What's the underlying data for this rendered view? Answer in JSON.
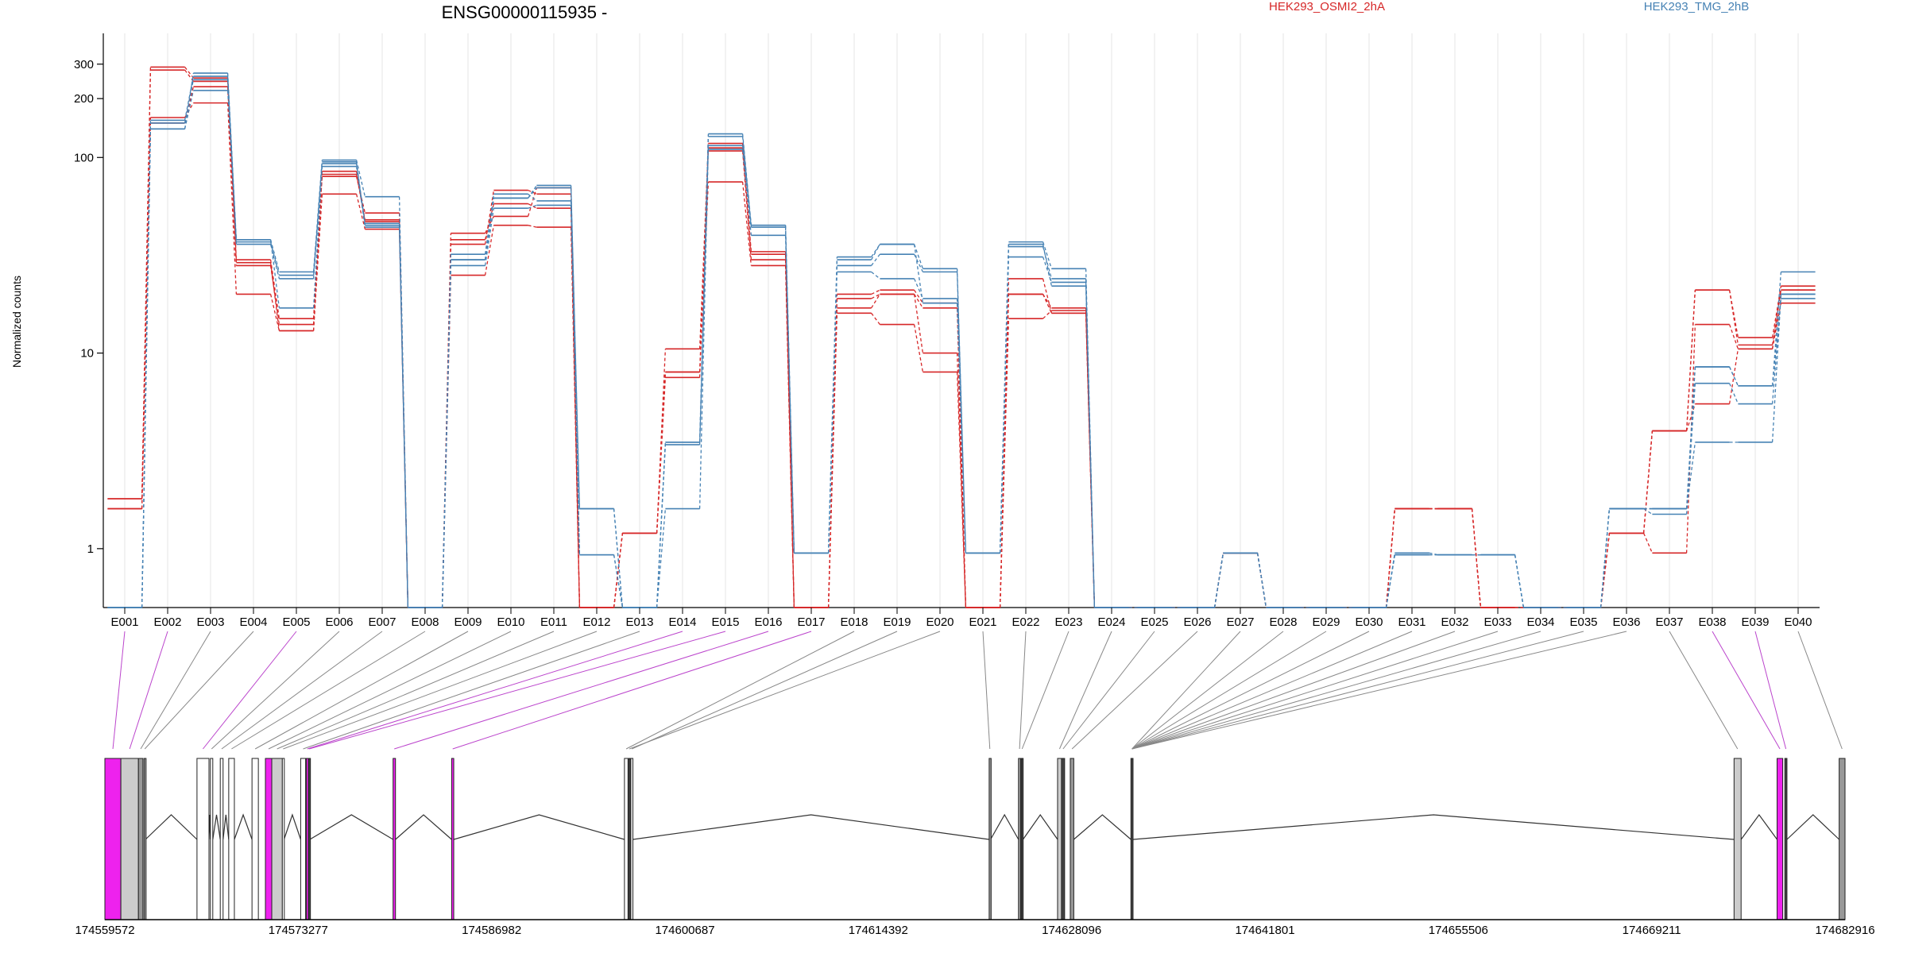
{
  "chart_data": {
    "type": "line",
    "title": "ENSG00000115935 -",
    "ylabel": "Normalized counts",
    "xlabel": "",
    "yscale": "log",
    "ylim": [
      0.5,
      400
    ],
    "yticks": [
      1,
      10,
      100,
      200,
      300
    ],
    "ytick_labels": [
      "1",
      "10",
      "100",
      "200",
      "300"
    ],
    "grid": "vertical",
    "legend": "top",
    "categories": [
      "E001",
      "E002",
      "E003",
      "E004",
      "E005",
      "E006",
      "E007",
      "E008",
      "E009",
      "E010",
      "E011",
      "E012",
      "E013",
      "E014",
      "E015",
      "E016",
      "E017",
      "E018",
      "E019",
      "E020",
      "E021",
      "E022",
      "E023",
      "E024",
      "E025",
      "E026",
      "E027",
      "E028",
      "E029",
      "E030",
      "E031",
      "E032",
      "E033",
      "E034",
      "E035",
      "E036",
      "E037",
      "E038",
      "E039",
      "E040"
    ],
    "groups": [
      {
        "name": "HEK293_OSMI2_2hA",
        "color": "#d62728"
      },
      {
        "name": "HEK293_TMG_2hB",
        "color": "#4682b4"
      }
    ],
    "series": [
      {
        "name": "",
        "group": 0,
        "values": [
          1.8,
          280,
          245,
          28,
          14,
          85,
          47,
          0.5,
          38,
          58,
          55,
          0.5,
          1.2,
          8,
          108,
          30,
          0.5,
          16,
          14,
          8,
          0.5,
          20,
          16,
          0.5,
          0.5,
          0.5,
          0.95,
          0.5,
          0.5,
          0.5,
          1.6,
          1.6,
          0.5,
          0.5,
          0.5,
          1.2,
          4,
          21,
          11,
          21
        ]
      },
      {
        "name": "",
        "group": 0,
        "values": [
          1.6,
          160,
          190,
          20,
          13,
          65,
          43,
          0.5,
          25,
          45,
          44,
          0.5,
          1.2,
          8,
          75,
          28,
          0.5,
          19,
          20,
          10,
          0.5,
          24,
          16,
          0.5,
          0.5,
          0.5,
          0.95,
          0.5,
          0.5,
          0.5,
          1.6,
          1.6,
          0.5,
          0.5,
          0.5,
          1.2,
          0.95,
          14,
          10.5,
          21
        ]
      },
      {
        "name": "",
        "group": 0,
        "values": [
          1.8,
          290,
          255,
          30,
          15,
          80,
          52,
          0.5,
          41,
          50,
          70,
          0.5,
          1.2,
          10.5,
          112,
          33,
          0.5,
          20,
          21,
          18,
          0.5,
          20,
          17,
          0.5,
          0.5,
          0.5,
          0.95,
          0.5,
          0.5,
          0.5,
          1.6,
          1.6,
          0.5,
          0.5,
          0.5,
          1.2,
          4,
          21,
          12,
          22
        ]
      },
      {
        "name": "",
        "group": 0,
        "values": [
          1.6,
          150,
          230,
          29,
          13,
          82,
          48,
          0.5,
          36,
          68,
          65,
          0.5,
          1.2,
          7.5,
          118,
          32,
          0.5,
          17,
          20,
          17,
          0.5,
          15,
          16.5,
          0.5,
          0.5,
          0.5,
          0.95,
          0.5,
          0.5,
          0.5,
          1.6,
          1.6,
          0.5,
          0.5,
          0.5,
          1.2,
          4,
          5.5,
          10.5,
          18
        ]
      },
      {
        "name": "",
        "group": 1,
        "values": [
          0.5,
          140,
          270,
          38,
          26,
          97,
          63,
          0.5,
          30,
          62,
          72,
          1.6,
          0.5,
          3.5,
          132,
          45,
          0.95,
          31,
          36,
          27,
          0.95,
          37,
          27,
          0.5,
          0.5,
          0.5,
          0.95,
          0.5,
          0.5,
          0.5,
          0.95,
          0.93,
          0.93,
          0.5,
          0.5,
          1.6,
          1.6,
          8.5,
          6.8,
          26
        ]
      },
      {
        "name": "",
        "group": 1,
        "values": [
          0.5,
          150,
          250,
          36,
          24,
          95,
          45,
          0.5,
          32,
          65,
          60,
          0.93,
          0.5,
          3.4,
          115,
          45,
          0.95,
          28,
          32,
          26,
          0.95,
          35,
          24,
          0.5,
          0.5,
          0.5,
          0.95,
          0.5,
          0.5,
          0.5,
          0.93,
          0.93,
          0.93,
          0.5,
          0.5,
          1.6,
          1.6,
          3.5,
          3.5,
          20
        ]
      },
      {
        "name": "",
        "group": 1,
        "values": [
          0.5,
          140,
          220,
          38,
          17,
          90,
          44,
          0.5,
          28,
          55,
          57,
          0.93,
          0.5,
          1.6,
          110,
          40,
          0.95,
          26,
          24,
          19,
          0.95,
          31,
          23,
          0.5,
          0.5,
          0.5,
          0.95,
          0.5,
          0.5,
          0.5,
          0.93,
          0.93,
          0.93,
          0.5,
          0.5,
          1.6,
          1.5,
          7,
          5.5,
          20
        ]
      },
      {
        "name": "",
        "group": 1,
        "values": [
          0.5,
          155,
          260,
          37,
          25,
          93,
          46,
          0.5,
          30,
          62,
          70,
          1.6,
          0.5,
          3.5,
          128,
          44,
          0.95,
          30,
          36,
          18,
          0.95,
          36,
          22,
          0.5,
          0.5,
          0.5,
          0.95,
          0.5,
          0.5,
          0.5,
          0.95,
          0.93,
          0.93,
          0.5,
          0.5,
          1.6,
          1.6,
          8.5,
          6.8,
          19
        ]
      }
    ],
    "genomic_ticks": [
      "174559572",
      "174573277",
      "174586982",
      "174600687",
      "174614392",
      "174628096",
      "174641801",
      "174655506",
      "174669211",
      "174682916"
    ],
    "genome_range": [
      174559572,
      174682916
    ],
    "gene_structure": {
      "exons": [
        {
          "id": "E001",
          "start": 174559572,
          "end": 174560705,
          "color": "#ee22ee"
        },
        {
          "id": "E002",
          "start": 174560705,
          "end": 174561950,
          "color": "#cccccc"
        },
        {
          "id": "E003",
          "start": 174561950,
          "end": 174562270,
          "color": "#999999"
        },
        {
          "id": "E004",
          "start": 174562350,
          "end": 174562450,
          "color": "#999999"
        },
        {
          "id": "E005",
          "start": 174566100,
          "end": 174566950,
          "color": "#ffffff"
        },
        {
          "id": "E006",
          "start": 174567050,
          "end": 174567220,
          "color": "#ffffff"
        },
        {
          "id": "E007",
          "start": 174567750,
          "end": 174567950,
          "color": "#ffffff"
        },
        {
          "id": "E008",
          "start": 174568350,
          "end": 174568750,
          "color": "#ffffff"
        },
        {
          "id": "E009",
          "start": 174570000,
          "end": 174570450,
          "color": "#ffffff"
        },
        {
          "id": "E010",
          "start": 174570950,
          "end": 174571400,
          "color": "#ee22ee"
        },
        {
          "id": "E011",
          "start": 174571400,
          "end": 174572150,
          "color": "#cccccc"
        },
        {
          "id": "E012",
          "start": 174572150,
          "end": 174572270,
          "color": "#ffffff"
        },
        {
          "id": "E013",
          "start": 174573450,
          "end": 174573800,
          "color": "#ffffff"
        },
        {
          "id": "E014",
          "start": 174573850,
          "end": 174574000,
          "color": "#ee22ee"
        },
        {
          "id": "E015",
          "start": 174574000,
          "end": 174574100,
          "color": "#444444"
        },
        {
          "id": "E016",
          "start": 174580000,
          "end": 174580170,
          "color": "#ee22ee"
        },
        {
          "id": "E017",
          "start": 174584150,
          "end": 174584300,
          "color": "#ee22ee"
        },
        {
          "id": "E018",
          "start": 174596400,
          "end": 174596650,
          "color": "#ffffff"
        },
        {
          "id": "E019",
          "start": 174596850,
          "end": 174597000,
          "color": "#ffffff"
        },
        {
          "id": "E020",
          "start": 174596700,
          "end": 174596800,
          "color": "#444444"
        },
        {
          "id": "E021",
          "start": 174622250,
          "end": 174622350,
          "color": "#999999"
        },
        {
          "id": "E022",
          "start": 174624330,
          "end": 174624480,
          "color": "#999999"
        },
        {
          "id": "E023",
          "start": 174624520,
          "end": 174624650,
          "color": "#444444"
        },
        {
          "id": "E024",
          "start": 174627100,
          "end": 174627380,
          "color": "#cccccc"
        },
        {
          "id": "E025",
          "start": 174627380,
          "end": 174627600,
          "color": "#444444"
        },
        {
          "id": "E026",
          "start": 174628000,
          "end": 174628250,
          "color": "#999999"
        },
        {
          "id": "E027",
          "start": 174632300,
          "end": 174632450,
          "color": "#444444"
        },
        {
          "id": "E037",
          "start": 174675050,
          "end": 174675550,
          "color": "#cccccc"
        },
        {
          "id": "E038",
          "start": 174678100,
          "end": 174678500,
          "color": "#ee22ee"
        },
        {
          "id": "E039",
          "start": 174678650,
          "end": 174678800,
          "color": "#444444"
        },
        {
          "id": "E040",
          "start": 174682500,
          "end": 174682916,
          "color": "#999999"
        }
      ],
      "introns": [
        [
          174562450,
          174566100
        ],
        [
          174566950,
          174567050
        ],
        [
          174567220,
          174567750
        ],
        [
          174567950,
          174568350
        ],
        [
          174568750,
          174570000
        ],
        [
          174572270,
          174573450
        ],
        [
          174574100,
          174580000
        ],
        [
          174580170,
          174584150
        ],
        [
          174584300,
          174596400
        ],
        [
          174597000,
          174622250
        ],
        [
          174622350,
          174624330
        ],
        [
          174624650,
          174627100
        ],
        [
          174628250,
          174632300
        ],
        [
          174632450,
          174675050
        ],
        [
          174675550,
          174678100
        ],
        [
          174678800,
          174682500
        ]
      ],
      "connector_colors": [
        "#bb44cc",
        "#bb44cc",
        "#888888",
        "#888888",
        "#bb44cc",
        "#888888",
        "#888888",
        "#888888",
        "#888888",
        "#888888",
        "#888888",
        "#888888",
        "#888888",
        "#bb44cc",
        "#bb44cc",
        "#bb44cc",
        "#bb44cc",
        "#888888",
        "#888888",
        "#888888",
        "#888888",
        "#888888",
        "#888888",
        "#888888",
        "#888888",
        "#888888",
        "#888888",
        "#888888",
        "#888888",
        "#888888",
        "#888888",
        "#888888",
        "#888888",
        "#888888",
        "#888888",
        "#888888",
        "#888888",
        "#bb44cc",
        "#bb44cc",
        "#888888"
      ]
    }
  }
}
